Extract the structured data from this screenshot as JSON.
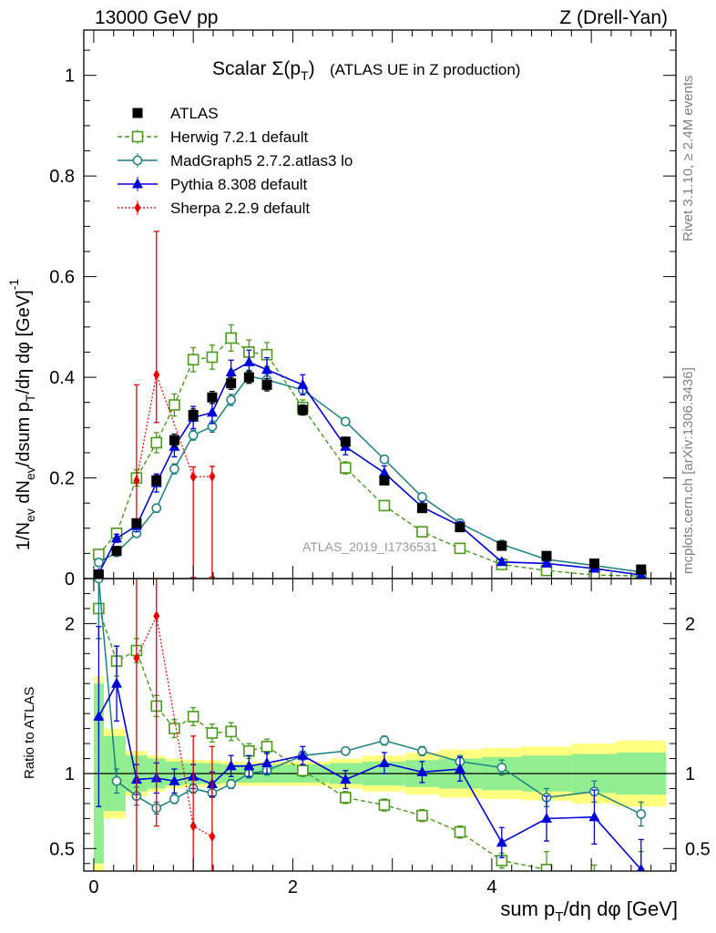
{
  "header": {
    "left": "13000 GeV pp",
    "right": "Z (Drell-Yan)"
  },
  "side_labels": {
    "rivet": "Rivet 3.1.10, ≥ 2.4M events",
    "mcplots": "mcplots.cern.ch [arXiv:1306.3436]"
  },
  "chart_data": {
    "type": "line",
    "title_main": "Scalar Σ(p",
    "title_sub": "T",
    "title_close": ")",
    "title_note": "(ATLAS UE in Z production)",
    "analysis_id": "ATLAS_2019_I1736531",
    "ylabel_top": "1/N_ev dN_ev/dsum p_T/dη dφ [GeV]^-1",
    "ylabel_bottom": "Ratio to ATLAS",
    "xlabel": "sum p_T/dη dφ [GeV]",
    "xlim": [
      -0.1,
      5.85
    ],
    "ylim_main": [
      0,
      1.09
    ],
    "ylim_ratio": [
      0.35,
      2.3
    ],
    "x_ticks": [
      "0",
      "2",
      "4"
    ],
    "y_ticks_main": [
      "0",
      "0.2",
      "0.4",
      "0.6",
      "0.8",
      "1"
    ],
    "y_ticks_ratio": [
      "0.5",
      "1",
      "2"
    ],
    "legend": [
      {
        "id": "atlas",
        "label": "ATLAS"
      },
      {
        "id": "herwig",
        "label": "Herwig 7.2.1 default"
      },
      {
        "id": "madgraph",
        "label": "MadGraph5 2.7.2.atlas3 lo"
      },
      {
        "id": "pythia",
        "label": "Pythia 8.308 default"
      },
      {
        "id": "sherpa",
        "label": "Sherpa 2.2.9 default"
      }
    ],
    "colors": {
      "atlas": "#000000",
      "herwig": "#4a9a1c",
      "madgraph": "#1a8080",
      "pythia": "#0000dd",
      "sherpa": "#ee0000",
      "band_inner": "#90ee90",
      "band_outer": "#ffff80"
    },
    "x": [
      0.05,
      0.23,
      0.43,
      0.63,
      0.81,
      1.0,
      1.19,
      1.38,
      1.56,
      1.74,
      2.1,
      2.53,
      2.92,
      3.3,
      3.68,
      4.1,
      4.55,
      5.03,
      5.5
    ],
    "x_edges": [
      -0.0,
      0.1,
      0.32,
      0.54,
      0.72,
      0.9,
      1.09,
      1.28,
      1.47,
      1.65,
      1.83,
      2.37,
      2.7,
      3.13,
      3.47,
      3.9,
      4.3,
      4.8,
      5.25,
      5.75
    ],
    "series": [
      {
        "id": "atlas",
        "name": "ATLAS",
        "values": [
          0.008,
          0.055,
          0.11,
          0.195,
          0.275,
          0.325,
          0.36,
          0.388,
          0.4,
          0.385,
          0.335,
          0.272,
          0.195,
          0.14,
          0.102,
          0.065,
          0.045,
          0.03,
          0.018
        ],
        "errors": [
          0.003,
          0.006,
          0.008,
          0.01,
          0.012,
          0.012,
          0.012,
          0.012,
          0.012,
          0.012,
          0.01,
          0.009,
          0.007,
          0.005,
          0.004,
          0.003,
          0.003,
          0.002,
          0.002
        ]
      },
      {
        "id": "herwig",
        "name": "Herwig 7.2.1 default",
        "values": [
          0.048,
          0.09,
          0.2,
          0.27,
          0.345,
          0.435,
          0.44,
          0.478,
          0.45,
          0.445,
          0.34,
          0.22,
          0.145,
          0.093,
          0.06,
          0.028,
          0.016,
          0.007,
          0.005
        ],
        "errors": [
          0.006,
          0.01,
          0.016,
          0.02,
          0.022,
          0.024,
          0.024,
          0.026,
          0.024,
          0.024,
          0.015,
          0.012,
          0.009,
          0.007,
          0.005,
          0.004,
          0.003,
          0.002,
          0.002
        ],
        "ratio": [
          2.1,
          1.75,
          1.82,
          1.45,
          1.3,
          1.38,
          1.27,
          1.28,
          1.15,
          1.18,
          1.02,
          0.84,
          0.79,
          0.72,
          0.61,
          0.42,
          0.36,
          0.24,
          0.28
        ],
        "ratio_err": [
          0.2,
          0.1,
          0.08,
          0.07,
          0.06,
          0.06,
          0.06,
          0.06,
          0.05,
          0.05,
          0.04,
          0.04,
          0.04,
          0.04,
          0.04,
          0.05,
          0.12,
          0.15,
          0.2
        ]
      },
      {
        "id": "madgraph",
        "name": "MadGraph5 2.7.2.atlas3 lo",
        "values": [
          0.032,
          0.052,
          0.09,
          0.14,
          0.218,
          0.285,
          0.302,
          0.355,
          0.402,
          0.395,
          0.375,
          0.312,
          0.237,
          0.162,
          0.11,
          0.068,
          0.038,
          0.026,
          0.013
        ],
        "errors": [
          0.004,
          0.005,
          0.006,
          0.008,
          0.01,
          0.01,
          0.011,
          0.011,
          0.012,
          0.012,
          0.006,
          0.005,
          0.004,
          0.004,
          0.003,
          0.003,
          0.002,
          0.002,
          0.002
        ],
        "ratio": [
          2.3,
          0.95,
          0.85,
          0.77,
          0.83,
          0.9,
          0.87,
          0.93,
          1.0,
          1.02,
          1.12,
          1.15,
          1.22,
          1.15,
          1.08,
          1.04,
          0.84,
          0.88,
          0.73
        ],
        "ratio_err": [
          0.4,
          0.08,
          0.06,
          0.04,
          0.03,
          0.03,
          0.03,
          0.03,
          0.03,
          0.03,
          0.03,
          0.02,
          0.03,
          0.03,
          0.04,
          0.05,
          0.06,
          0.07,
          0.08
        ]
      },
      {
        "id": "pythia",
        "name": "Pythia 8.308 default",
        "values": [
          0.01,
          0.08,
          0.105,
          0.19,
          0.262,
          0.32,
          0.33,
          0.41,
          0.43,
          0.415,
          0.385,
          0.262,
          0.21,
          0.142,
          0.105,
          0.033,
          0.03,
          0.02,
          0.007
        ],
        "errors": [
          0.005,
          0.008,
          0.012,
          0.018,
          0.02,
          0.022,
          0.022,
          0.024,
          0.024,
          0.024,
          0.02,
          0.016,
          0.014,
          0.01,
          0.008,
          0.006,
          0.005,
          0.004,
          0.003
        ],
        "ratio": [
          1.38,
          1.6,
          0.96,
          0.97,
          0.95,
          0.98,
          0.93,
          1.05,
          1.05,
          1.07,
          1.12,
          0.96,
          1.07,
          1.01,
          1.03,
          0.54,
          0.7,
          0.71,
          0.36
        ],
        "ratio_err": [
          0.6,
          0.25,
          0.1,
          0.1,
          0.08,
          0.08,
          0.08,
          0.07,
          0.07,
          0.07,
          0.06,
          0.06,
          0.07,
          0.07,
          0.08,
          0.1,
          0.15,
          0.18,
          0.2
        ]
      },
      {
        "id": "sherpa",
        "name": "Sherpa 2.2.9 default",
        "x": [
          0.43,
          0.63,
          1.0,
          1.19
        ],
        "values": [
          0.195,
          0.405,
          0.202,
          0.203
        ],
        "err_low": [
          0.09,
          0.095,
          0.2,
          0.2
        ],
        "err_high": [
          0.19,
          0.285,
          0.02,
          0.02
        ],
        "ratio": [
          1.77,
          2.05,
          0.65,
          0.58
        ],
        "ratio_err_low": [
          1.6,
          1.4,
          1.0,
          1.0
        ],
        "ratio_err_high": [
          0.6,
          0.6,
          0.6,
          0.6
        ]
      }
    ],
    "band_inner_half": [
      0.6,
      0.25,
      0.12,
      0.1,
      0.08,
      0.07,
      0.07,
      0.06,
      0.06,
      0.06,
      0.06,
      0.07,
      0.08,
      0.09,
      0.1,
      0.11,
      0.12,
      0.13,
      0.14
    ],
    "band_outer_half": [
      0.65,
      0.3,
      0.15,
      0.12,
      0.1,
      0.09,
      0.09,
      0.08,
      0.08,
      0.08,
      0.08,
      0.1,
      0.12,
      0.14,
      0.16,
      0.17,
      0.18,
      0.2,
      0.22
    ]
  }
}
